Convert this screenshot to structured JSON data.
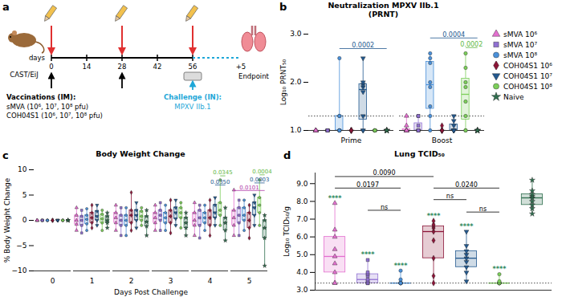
{
  "chart_data": [
    {
      "type": "diagram",
      "panel": "a",
      "animal": "CAST/EiJ",
      "axis_label": "days",
      "x": [
        0,
        14,
        28,
        42,
        56
      ],
      "end_label": "+5",
      "end_text": "Endpoint",
      "bleed_days": [
        0,
        28,
        56
      ],
      "vaccination": {
        "days": [
          0,
          28
        ],
        "title": "Vaccinations (IM):",
        "lines": [
          "sMVA (10⁶, 10⁷, 10⁸ pfu)",
          "COH04S1 (10⁶, 10⁷, 10⁸ pfu)"
        ]
      },
      "challenge": {
        "day": 56,
        "title": "Challenge (IN):",
        "line": "MPXV IIb.1"
      }
    },
    {
      "type": "box",
      "panel": "b",
      "title": "Neutralization MPXV IIb.1",
      "subtitle": "(PRNT)",
      "ylabel": "Log₁₀ PRNT₅₀",
      "categories": [
        "Prime",
        "Boost"
      ],
      "ylim": [
        1,
        3
      ],
      "yticks": [
        1,
        2,
        3
      ],
      "reference_line": 1.3,
      "legend": "right",
      "series": [
        {
          "name": "sMVA 10⁶",
          "color": "#e36fcf",
          "marker": "triangle",
          "values": [
            [
              1,
              1,
              1,
              1,
              1,
              1,
              1,
              1
            ],
            [
              1,
              1,
              1,
              1,
              1,
              1,
              1.1,
              1.3
            ]
          ]
        },
        {
          "name": "sMVA 10⁷",
          "color": "#9070d2",
          "marker": "square",
          "values": [
            [
              1,
              1,
              1,
              1,
              1,
              1,
              1,
              1
            ],
            [
              1,
              1,
              1,
              1,
              1,
              1.1,
              1.3,
              1.3
            ]
          ]
        },
        {
          "name": "sMVA 10⁸",
          "color": "#4a90d9",
          "marker": "circle",
          "values": [
            [
              1,
              1,
              1,
              1,
              1,
              1.3,
              1.3,
              2.5
            ],
            [
              1,
              1.3,
              1.5,
              1.9,
              2.0,
              2.4,
              2.5,
              2.6
            ]
          ]
        },
        {
          "name": "COH04S1 10⁶",
          "color": "#8b1538",
          "marker": "diamond",
          "values": [
            [
              1,
              1,
              1,
              1,
              1,
              1,
              1,
              1
            ],
            [
              1,
              1,
              1,
              1,
              1,
              1,
              1,
              1.1
            ]
          ]
        },
        {
          "name": "COH04S1 10⁷",
          "color": "#23598f",
          "marker": "triangle-down",
          "values": [
            [
              1,
              1,
              1.3,
              1.8,
              1.9,
              1.95,
              2.0,
              2.5
            ],
            [
              1,
              1,
              1,
              1,
              1,
              1.1,
              1.2,
              1.3
            ]
          ]
        },
        {
          "name": "COH04S1 10⁸",
          "color": "#7ccf5a",
          "marker": "circle",
          "values": [
            [
              1,
              1,
              1,
              1,
              1,
              1,
              1,
              1
            ],
            [
              1,
              1,
              1.3,
              1.6,
              1.9,
              2.0,
              2.3,
              2.6
            ]
          ]
        },
        {
          "name": "Naive",
          "color": "#2f6e4e",
          "marker": "star",
          "values": [
            [
              1,
              1,
              1,
              1,
              1,
              1,
              1,
              1
            ],
            [
              1,
              1,
              1,
              1,
              1,
              1,
              1,
              1
            ]
          ]
        }
      ],
      "annotations": [
        {
          "category": "Prime",
          "from": "sMVA 10⁸",
          "to": "Naive",
          "y": 2.7,
          "label": "0.0002",
          "color": "#23598f"
        },
        {
          "category": "Boost",
          "from": "sMVA 10⁸",
          "to": "Naive",
          "y": 2.92,
          "label": "0.0004",
          "color": "#23598f"
        },
        {
          "category": "Boost",
          "from": "COH04S1 10⁸",
          "to": "Naive",
          "y": 2.72,
          "label": "0.0002",
          "color": "#5fb83f"
        }
      ]
    },
    {
      "type": "box",
      "panel": "c",
      "title": "Body Weight Change",
      "ylabel": "% Body Weight Change",
      "xlabel": "Days Post Challenge",
      "x": [
        0,
        1,
        2,
        3,
        4,
        5
      ],
      "ylim": [
        -10,
        10
      ],
      "yticks": [
        -10,
        -5,
        0,
        5,
        10
      ],
      "series": [
        {
          "name": "sMVA 10⁶",
          "color": "#e36fcf",
          "marker": "triangle",
          "values": [
            [
              0,
              0,
              0,
              0,
              0
            ],
            [
              -2,
              -0.8,
              0,
              1,
              2.5
            ],
            [
              -2,
              -0.5,
              0.5,
              1.5,
              3
            ],
            [
              -2,
              -0.5,
              0.5,
              1.5,
              3
            ],
            [
              -3,
              -1,
              0,
              1.5,
              3.5
            ],
            [
              -3,
              -1,
              0.5,
              2,
              6
            ]
          ]
        },
        {
          "name": "sMVA 10⁷",
          "color": "#9070d2",
          "marker": "square",
          "values": [
            [
              0,
              0,
              0,
              0,
              0
            ],
            [
              -2.5,
              -1,
              0,
              0.8,
              2
            ],
            [
              -3,
              -1,
              0,
              1,
              2.5
            ],
            [
              -2,
              0,
              1,
              2,
              3.5
            ],
            [
              -3.5,
              -1,
              0.5,
              2,
              3
            ],
            [
              -3,
              -0.5,
              1,
              2.5,
              4
            ]
          ]
        },
        {
          "name": "sMVA 10⁸",
          "color": "#4a90d9",
          "marker": "circle",
          "values": [
            [
              0,
              0,
              0,
              0,
              0
            ],
            [
              -2,
              -0.7,
              0.2,
              1,
              2.3
            ],
            [
              -3,
              -1,
              0,
              1,
              2.5
            ],
            [
              -2,
              -0.5,
              0.5,
              1.5,
              3
            ],
            [
              -2,
              -0.5,
              0.5,
              1.5,
              3
            ],
            [
              -2,
              0,
              1,
              2.5,
              4
            ]
          ]
        },
        {
          "name": "COH04S1 10⁶",
          "color": "#8b1538",
          "marker": "diamond",
          "values": [
            [
              0,
              0,
              0,
              0,
              0
            ],
            [
              -1.5,
              -0.5,
              0.5,
              1.5,
              3
            ],
            [
              -2,
              -0.5,
              1,
              2,
              5.5
            ],
            [
              -2.5,
              -0.5,
              0.8,
              2,
              4
            ],
            [
              -3,
              -1,
              0.5,
              2,
              4
            ],
            [
              -3.5,
              -1.5,
              0,
              1.5,
              3
            ]
          ]
        },
        {
          "name": "COH04S1 10⁷",
          "color": "#23598f",
          "marker": "triangle-down",
          "values": [
            [
              0,
              0,
              0,
              0,
              0
            ],
            [
              -1,
              0,
              0.8,
              1.8,
              3
            ],
            [
              -1.5,
              0,
              1,
              2,
              3.5
            ],
            [
              -1,
              0.3,
              1.5,
              2.5,
              4
            ],
            [
              -1,
              0.5,
              1.5,
              3,
              4.5
            ],
            [
              -1,
              1,
              2.5,
              3.5,
              5
            ]
          ]
        },
        {
          "name": "COH04S1 10⁸",
          "color": "#7ccf5a",
          "marker": "circle",
          "values": [
            [
              0,
              0,
              0,
              0,
              0
            ],
            [
              -2,
              -0.5,
              0.3,
              1.2,
              2
            ],
            [
              -1,
              0,
              0.8,
              1.8,
              2.5
            ],
            [
              -1.5,
              0.5,
              1.5,
              2.5,
              3.5
            ],
            [
              -1,
              1,
              2,
              3.5,
              8
            ],
            [
              -1,
              1.5,
              3,
              4.5,
              8
            ]
          ]
        },
        {
          "name": "Naive",
          "color": "#2f6e4e",
          "marker": "star",
          "values": [
            [
              0,
              0,
              0,
              0,
              0
            ],
            [
              -1.5,
              -0.5,
              0,
              0.8,
              1.5
            ],
            [
              -3,
              -1.2,
              -0.3,
              0.8,
              2
            ],
            [
              -3,
              -1.5,
              -0.5,
              0.5,
              1.5
            ],
            [
              -4,
              -2,
              -0.5,
              0.5,
              2.5
            ],
            [
              -9,
              -3.5,
              -1.5,
              0,
              1
            ]
          ]
        }
      ],
      "annotations": [
        {
          "x": 4,
          "from": "COH04S1 10⁸",
          "to": "Naive",
          "y": 8.8,
          "label": "0.0345",
          "color": "#5fb83f"
        },
        {
          "x": 4,
          "from": "COH04S1 10⁷",
          "to": "Naive",
          "y": 7.0,
          "label": "0.0350",
          "color": "#23598f"
        },
        {
          "x": 5,
          "from": "COH04S1 10⁸",
          "to": "Naive",
          "y": 9.0,
          "label": "0.0004",
          "color": "#5fb83f"
        },
        {
          "x": 5,
          "from": "COH04S1 10⁷",
          "to": "Naive",
          "y": 7.4,
          "label": "0.0003",
          "color": "#23598f"
        },
        {
          "x": 5,
          "from": "sMVA 10⁶",
          "to": "Naive",
          "y": 5.9,
          "label": "0.0101",
          "color": "#b03aa8"
        }
      ]
    },
    {
      "type": "box",
      "panel": "d",
      "title": "Lung TCID₅₀",
      "ylabel": "Log₁₀ TCID₅₀/g",
      "ylim": [
        3,
        9.6
      ],
      "yticks": [
        3,
        4,
        5,
        6,
        7,
        8,
        9
      ],
      "reference_line": 3.4,
      "tick_labels": "y",
      "series": [
        {
          "name": "sMVA 10⁶",
          "color": "#e36fcf",
          "marker": "triangle",
          "values": [
            3.4,
            3.4,
            4.0,
            4.5,
            4.9,
            5.3,
            6.0,
            6.4,
            7.9
          ]
        },
        {
          "name": "sMVA 10⁷",
          "color": "#9070d2",
          "marker": "square",
          "values": [
            3.4,
            3.4,
            3.4,
            3.5,
            3.6,
            3.8,
            3.9,
            4.0,
            4.7
          ]
        },
        {
          "name": "sMVA 10⁸",
          "color": "#4a90d9",
          "marker": "circle",
          "values": [
            3.4,
            3.4,
            3.4,
            3.4,
            3.4,
            3.4,
            3.4,
            3.6,
            4.1
          ]
        },
        {
          "name": "COH04S1 10⁶",
          "color": "#8b1538",
          "marker": "diamond",
          "values": [
            3.4,
            3.8,
            4.8,
            5.8,
            6.3,
            6.5,
            6.6,
            6.7,
            6.9
          ]
        },
        {
          "name": "COH04S1 10⁷",
          "color": "#23598f",
          "marker": "triangle-down",
          "values": [
            3.5,
            4.0,
            4.3,
            4.6,
            4.8,
            5.0,
            5.2,
            5.5,
            6.3
          ]
        },
        {
          "name": "COH04S1 10⁸",
          "color": "#7ccf5a",
          "marker": "circle",
          "values": [
            3.4,
            3.4,
            3.4,
            3.4,
            3.4,
            3.4,
            3.4,
            3.5,
            3.9
          ]
        },
        {
          "name": "Naive",
          "color": "#2f6e4e",
          "marker": "star",
          "values": [
            7.3,
            7.6,
            7.8,
            8.0,
            8.2,
            8.3,
            8.4,
            8.6,
            9.2
          ]
        }
      ],
      "significance": [
        {
          "category": "sMVA 10⁶",
          "label": "****",
          "color": "#2f8a5e"
        },
        {
          "category": "sMVA 10⁷",
          "label": "****",
          "color": "#2f8a5e"
        },
        {
          "category": "sMVA 10⁸",
          "label": "****",
          "color": "#2f8a5e"
        },
        {
          "category": "COH04S1 10⁶",
          "label": "****",
          "color": "#2f8a5e"
        },
        {
          "category": "COH04S1 10⁷",
          "label": "****",
          "color": "#2f8a5e"
        },
        {
          "category": "COH04S1 10⁸",
          "label": "****",
          "color": "#2f8a5e"
        }
      ],
      "annotations": [
        {
          "from": "sMVA 10⁶",
          "to": "COH04S1 10⁶",
          "y": 9.4,
          "label": "0.0090",
          "color": "#000000"
        },
        {
          "from": "sMVA 10⁶",
          "to": "sMVA 10⁸",
          "y": 8.75,
          "label": "0.0197",
          "color": "#000000"
        },
        {
          "from": "sMVA 10⁷",
          "to": "sMVA 10⁸",
          "y": 7.5,
          "label": "ns",
          "color": "#000000"
        },
        {
          "from": "COH04S1 10⁶",
          "to": "COH04S1 10⁸",
          "y": 8.75,
          "label": "0.0240",
          "color": "#000000"
        },
        {
          "from": "COH04S1 10⁶",
          "to": "COH04S1 10⁷",
          "y": 8.1,
          "label": "ns",
          "color": "#000000"
        },
        {
          "from": "COH04S1 10⁷",
          "to": "COH04S1 10⁸",
          "y": 7.4,
          "label": "ns",
          "color": "#000000"
        }
      ]
    }
  ]
}
